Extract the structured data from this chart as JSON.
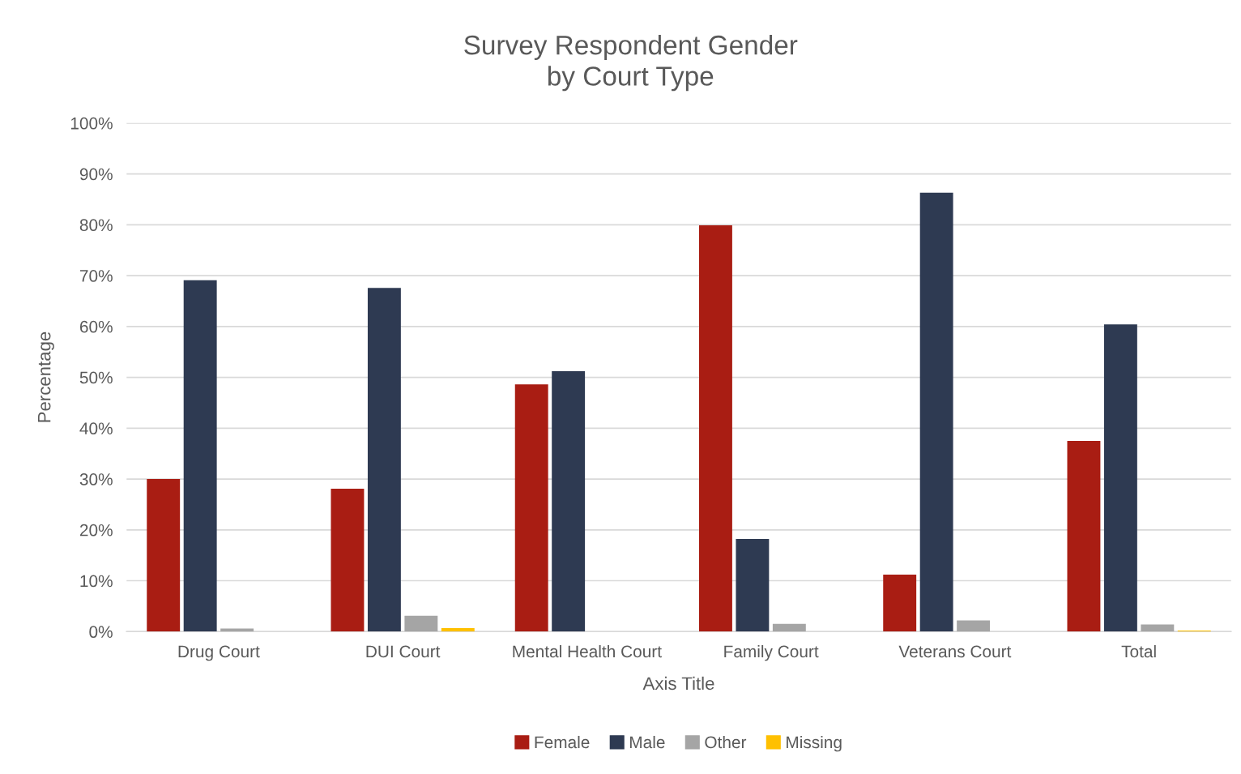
{
  "chart_data": {
    "type": "bar",
    "title": "Survey Respondent Gender\nby Court Type",
    "xlabel": "Axis Title",
    "ylabel": "Percentage",
    "categories": [
      "Drug Court",
      "DUI Court",
      "Mental Health Court",
      "Family Court",
      "Veterans Court",
      "Total"
    ],
    "series": [
      {
        "name": "Female",
        "color": "#a91d13",
        "values": [
          30.0,
          28.1,
          48.6,
          79.9,
          11.2,
          37.5
        ]
      },
      {
        "name": "Male",
        "color": "#2e3a52",
        "values": [
          69.1,
          67.6,
          51.2,
          18.2,
          86.3,
          60.4
        ]
      },
      {
        "name": "Other",
        "color": "#a5a5a5",
        "values": [
          0.6,
          3.1,
          0,
          1.5,
          2.2,
          1.4
        ]
      },
      {
        "name": "Missing",
        "color": "#ffc000",
        "values": [
          0,
          0.7,
          0,
          0,
          0,
          0.2
        ]
      }
    ],
    "ylim": [
      0,
      100
    ],
    "yticks": [
      {
        "value": 0,
        "label": "0%"
      },
      {
        "value": 10,
        "label": "10%"
      },
      {
        "value": 20,
        "label": "20%"
      },
      {
        "value": 30,
        "label": "30%"
      },
      {
        "value": 40,
        "label": "40%"
      },
      {
        "value": 50,
        "label": "50%"
      },
      {
        "value": 60,
        "label": "60%"
      },
      {
        "value": 70,
        "label": "70%"
      },
      {
        "value": 80,
        "label": "80%"
      },
      {
        "value": 90,
        "label": "90%"
      },
      {
        "value": 100,
        "label": "100%"
      }
    ],
    "grid": "y",
    "legend": "bottom"
  }
}
